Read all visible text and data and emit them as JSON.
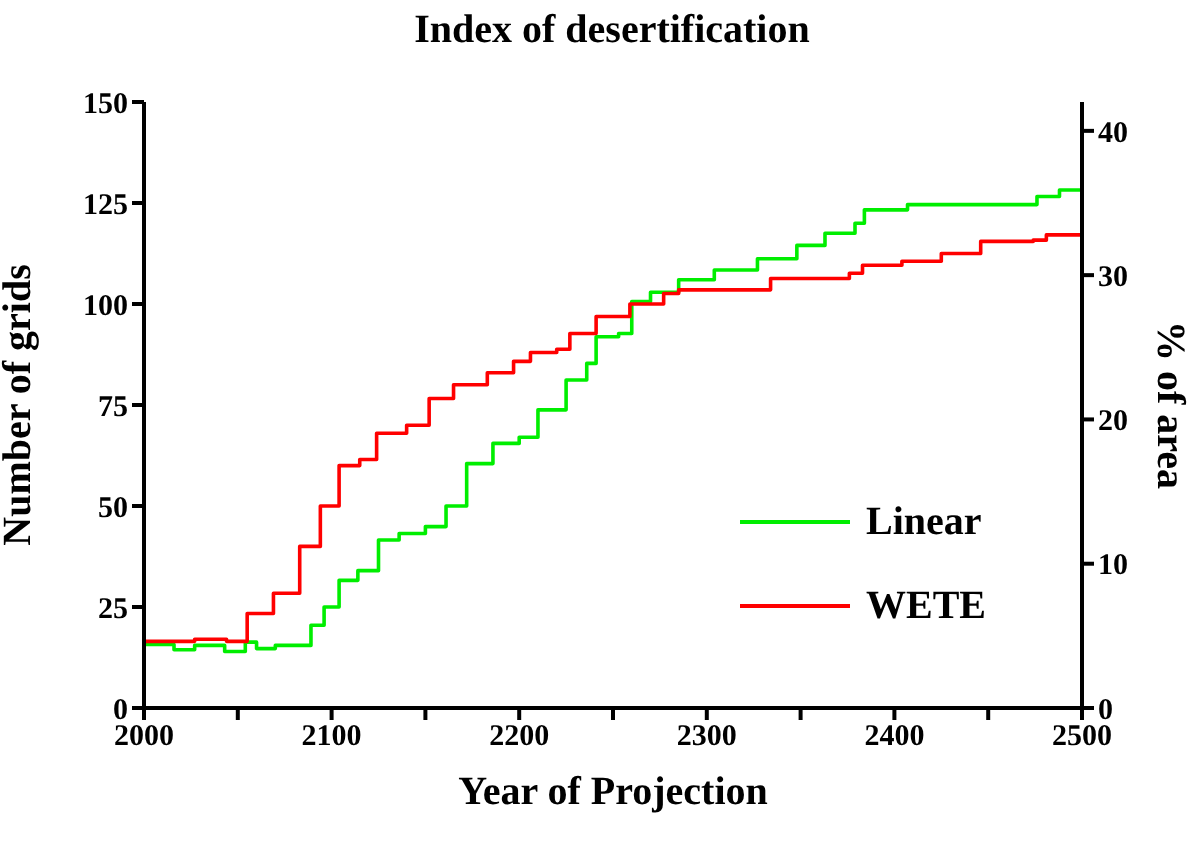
{
  "chart_data": {
    "type": "step",
    "title": "Index of desertification",
    "xlabel": "Year of Projection",
    "ylabel": "Number of grids",
    "y2label": "% of area",
    "xlim": [
      2000,
      2500
    ],
    "xticks": [
      2000,
      {
        "value": 2050,
        "label": null
      },
      2100,
      {
        "value": 2150,
        "label": null
      },
      2200,
      {
        "value": 2250,
        "label": null
      },
      2300,
      {
        "value": 2350,
        "label": null
      },
      2400,
      {
        "value": 2450,
        "label": null
      },
      2500
    ],
    "ylim": [
      0,
      150
    ],
    "yticks": [
      0,
      25,
      50,
      75,
      100,
      125,
      150
    ],
    "y2lim": [
      0,
      42
    ],
    "y2ticks": [
      0,
      10,
      20,
      30,
      40
    ],
    "grid": false,
    "legend": "bottom right",
    "marker": "none",
    "line_style": "solid",
    "series": [
      {
        "name": "Linear",
        "color": "#00ee00",
        "x": [
          2000,
          2016,
          2027,
          2043,
          2054,
          2060,
          2070,
          2089,
          2096,
          2104,
          2114,
          2125,
          2136,
          2150,
          2161,
          2172,
          2186,
          2200,
          2210,
          2225,
          2236,
          2241,
          2253,
          2260,
          2270,
          2285,
          2304,
          2327,
          2348,
          2363,
          2379,
          2384,
          2407,
          2471,
          2476,
          2488,
          2500
        ],
        "values": [
          15.7,
          14.4,
          15.5,
          14,
          16.3,
          14.7,
          15.5,
          20.5,
          25,
          31.6,
          34,
          41.6,
          43.2,
          44.9,
          50,
          60.5,
          65.5,
          67,
          73.8,
          81.2,
          85.3,
          91.9,
          92.7,
          100.6,
          102.9,
          106,
          108.4,
          111.2,
          114.5,
          117.5,
          120,
          123.3,
          124.6,
          124.6,
          126.6,
          128.2,
          128.2
        ]
      },
      {
        "name": "WETE",
        "color": "#ff0000",
        "x": [
          2000,
          2027,
          2044,
          2055,
          2069,
          2083,
          2094,
          2104,
          2115,
          2124,
          2140,
          2152,
          2165,
          2183,
          2197,
          2206,
          2220,
          2227,
          2241,
          2259,
          2277,
          2285,
          2320,
          2334,
          2376,
          2383,
          2404,
          2425,
          2446,
          2474,
          2481,
          2500
        ],
        "values": [
          16.5,
          17,
          16.5,
          23.4,
          28.4,
          40,
          50,
          60,
          61.5,
          68,
          70,
          76.6,
          80,
          83,
          85.8,
          88,
          88.8,
          92.7,
          96.9,
          100,
          102.6,
          103.5,
          103.5,
          106.3,
          107.6,
          109.6,
          110.6,
          112.5,
          115.5,
          115.8,
          117.1,
          117.5
        ]
      }
    ]
  }
}
